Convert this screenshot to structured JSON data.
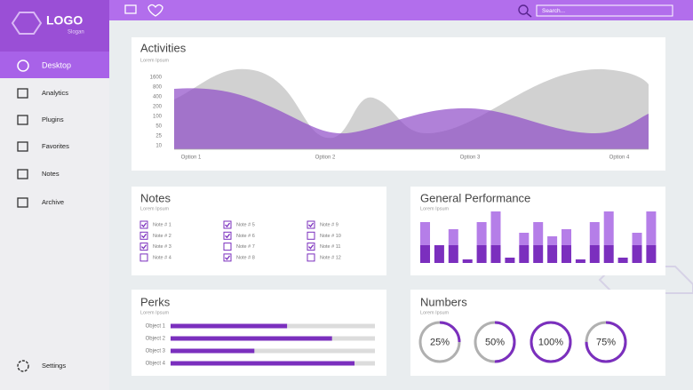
{
  "sidebar": {
    "logo": "LOGO",
    "slogan": "Slogan",
    "active": "Desktop",
    "items": [
      "Analytics",
      "Plugins",
      "Favorites",
      "Notes",
      "Archive"
    ],
    "settings": "Settings"
  },
  "topbar": {
    "search_placeholder": "Search..."
  },
  "activities": {
    "title": "Activities",
    "subtitle": "Lorem Ipsum",
    "yticks": [
      "1600",
      "800",
      "400",
      "200",
      "100",
      "50",
      "25",
      "10"
    ],
    "categories": [
      "Option 1",
      "Option 2",
      "Option 3",
      "Option 4"
    ]
  },
  "notes": {
    "title": "Notes",
    "subtitle": "Lorem Ipsum",
    "items": [
      {
        "label": "Note # 1",
        "checked": true
      },
      {
        "label": "Note # 2",
        "checked": true
      },
      {
        "label": "Note # 3",
        "checked": true
      },
      {
        "label": "Note # 4",
        "checked": false
      },
      {
        "label": "Note # 5",
        "checked": true
      },
      {
        "label": "Note # 6",
        "checked": true
      },
      {
        "label": "Note # 7",
        "checked": false
      },
      {
        "label": "Note # 8",
        "checked": true
      },
      {
        "label": "Note # 9",
        "checked": true
      },
      {
        "label": "Note # 10",
        "checked": false
      },
      {
        "label": "Note # 11",
        "checked": true
      },
      {
        "label": "Note # 12",
        "checked": false
      }
    ]
  },
  "performance": {
    "title": "General Performance",
    "subtitle": "Lorem Ipsum",
    "dark": [
      20,
      20,
      20,
      4,
      20,
      20,
      6,
      20,
      20,
      20,
      20,
      4,
      20,
      20,
      6,
      20,
      20
    ],
    "light": [
      26,
      0,
      18,
      0,
      26,
      38,
      0,
      14,
      26,
      10,
      18,
      0,
      26,
      38,
      0,
      14,
      38
    ]
  },
  "perks": {
    "title": "Perks",
    "subtitle": "Lorem Ipsum",
    "items": [
      {
        "label": "Object 1",
        "value": 57
      },
      {
        "label": "Object 2",
        "value": 79
      },
      {
        "label": "Object 3",
        "value": 41
      },
      {
        "label": "Object 4",
        "value": 90
      }
    ]
  },
  "numbers": {
    "title": "Numbers",
    "subtitle": "Lorem Ipsum",
    "items": [
      {
        "value": 25,
        "label": "25%"
      },
      {
        "value": 50,
        "label": "50%"
      },
      {
        "value": 100,
        "label": "100%"
      },
      {
        "value": 75,
        "label": "75%"
      }
    ]
  }
}
